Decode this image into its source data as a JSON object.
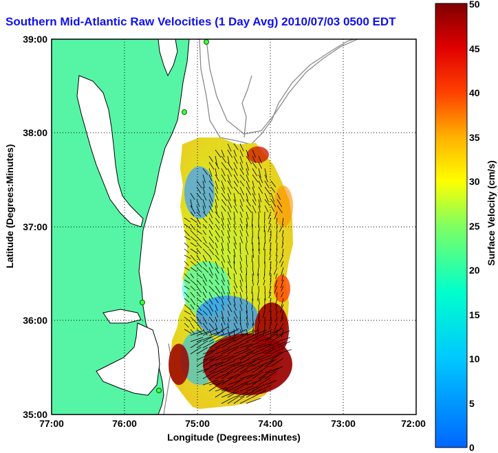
{
  "title": "Southern Mid-Atlantic Raw Velocities (1 Day Avg) 2010/07/03 0500 EDT",
  "xlabel": "Longitude (Degrees:Minutes)",
  "ylabel": "Latitude (Degrees:Minutes)",
  "colorbar_label": "Surface Velocity (cm/s)",
  "x_ticks": [
    "77:00",
    "76:00",
    "75:00",
    "74:00",
    "73:00",
    "72:00"
  ],
  "y_ticks": [
    "39:00",
    "38:00",
    "37:00",
    "36:00",
    "35:00"
  ],
  "colorbar_ticks": [
    "50",
    "45",
    "40",
    "35",
    "30",
    "25",
    "20",
    "15",
    "10",
    "5",
    "0"
  ],
  "colors": {
    "land": "#55f5a5",
    "title": "#1010ee"
  },
  "chart_data": {
    "type": "heatmap",
    "title": "Southern Mid-Atlantic Raw Velocities (1 Day Avg) 2010/07/03 0500 EDT",
    "xlabel": "Longitude (Degrees:Minutes)",
    "ylabel": "Latitude (Degrees:Minutes)",
    "xlim": [
      -77,
      -72
    ],
    "ylim": [
      35,
      39
    ],
    "colorbar_range": [
      0,
      50
    ],
    "colorbar_label": "Surface Velocity (cm/s)",
    "grid": true
  }
}
